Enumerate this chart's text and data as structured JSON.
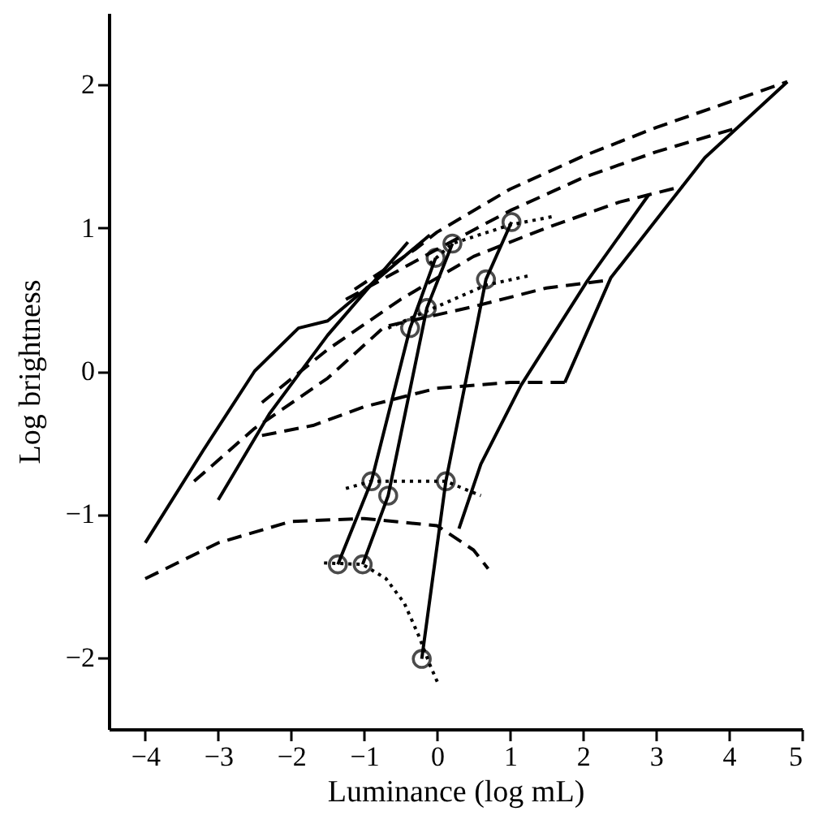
{
  "chart_data": {
    "type": "line",
    "xlabel": "Luminance (log mL)",
    "ylabel": "Log brightness",
    "xlim": [
      -4.5,
      5
    ],
    "ylim": [
      -2.5,
      2.5
    ],
    "xticks": [
      -4,
      -3,
      -2,
      -1,
      0,
      1,
      2,
      3,
      4,
      5
    ],
    "yticks": [
      -2,
      -1,
      0,
      1,
      2
    ],
    "grid": false,
    "legend": false,
    "series": [
      {
        "line_style": "solid",
        "color": "#000000",
        "x": [
          -4,
          -3.2,
          -2.5,
          -1.9,
          -1.5,
          -0.1
        ],
        "values": [
          -1.2,
          -0.55,
          0.0,
          0.3,
          0.35,
          0.95
        ]
      },
      {
        "line_style": "solid",
        "color": "#000000",
        "x": [
          -3,
          -2.3,
          -1.5,
          -0.4
        ],
        "values": [
          -0.9,
          -0.3,
          0.25,
          0.9
        ]
      },
      {
        "line_style": "solid",
        "color": "#000000",
        "x": [
          -1.36,
          -0.9,
          -0.37,
          -0.02
        ],
        "values": [
          -1.35,
          -0.77,
          0.3,
          0.79
        ]
      },
      {
        "line_style": "solid",
        "color": "#000000",
        "x": [
          -1.02,
          -0.67,
          -0.14,
          0.21
        ],
        "values": [
          -1.35,
          -0.87,
          0.44,
          0.89
        ]
      },
      {
        "line_style": "solid",
        "color": "#000000",
        "x": [
          -0.21,
          0.12,
          0.67,
          1.02
        ],
        "values": [
          -2.01,
          -0.77,
          0.64,
          1.04
        ]
      },
      {
        "line_style": "solid",
        "color": "#000000",
        "x": [
          0.3,
          0.6,
          1.15,
          2.06,
          2.9
        ],
        "values": [
          -1.1,
          -0.65,
          -0.1,
          0.63,
          1.23
        ]
      },
      {
        "line_style": "solid",
        "color": "#000000",
        "x": [
          1.75,
          2.38,
          3.67,
          4.8
        ],
        "values": [
          -0.08,
          0.65,
          1.49,
          2.02
        ]
      },
      {
        "line_style": "dashed",
        "color": "#000000",
        "x": [
          -1.13,
          -0.3,
          0,
          1,
          2,
          3,
          4.8
        ],
        "values": [
          0.57,
          0.85,
          0.97,
          1.27,
          1.5,
          1.7,
          2.02
        ]
      },
      {
        "line_style": "dashed",
        "color": "#000000",
        "x": [
          -1.25,
          0,
          1,
          2,
          3,
          4.13
        ],
        "values": [
          0.5,
          0.85,
          1.12,
          1.35,
          1.53,
          1.7
        ]
      },
      {
        "line_style": "dashed",
        "color": "#000000",
        "x": [
          -2.4,
          -1.5,
          -0.5,
          0.5,
          1.5,
          2.5,
          3.37
        ],
        "values": [
          -0.22,
          0.15,
          0.5,
          0.8,
          1.0,
          1.18,
          1.29
        ]
      },
      {
        "line_style": "dashed",
        "color": "#000000",
        "x": [
          -3.33,
          -2.5,
          -1.5,
          -0.72,
          0.5,
          1.5,
          2.29
        ],
        "values": [
          -0.77,
          -0.4,
          -0.05,
          0.31,
          0.45,
          0.58,
          0.63
        ]
      },
      {
        "line_style": "dashed",
        "color": "#000000",
        "x": [
          -2.4,
          -1.7,
          -1,
          0,
          1,
          1.75
        ],
        "values": [
          -0.45,
          -0.38,
          -0.25,
          -0.12,
          -0.08,
          -0.08
        ]
      },
      {
        "line_style": "dashed",
        "color": "#000000",
        "x": [
          -4,
          -3,
          -2,
          -1,
          0,
          0.5,
          0.7
        ],
        "values": [
          -1.45,
          -1.2,
          -1.05,
          -1.03,
          -1.08,
          -1.25,
          -1.38
        ]
      },
      {
        "line_style": "dotted",
        "color": "#000000",
        "x": [
          -0.1,
          0.21,
          1.0,
          1.6
        ],
        "values": [
          0.75,
          0.89,
          1.02,
          1.08
        ]
      },
      {
        "line_style": "dotted",
        "color": "#000000",
        "x": [
          -0.67,
          0.67,
          1.3
        ],
        "values": [
          0.3,
          0.6,
          0.67
        ]
      },
      {
        "line_style": "dotted",
        "color": "#000000",
        "x": [
          -1.25,
          -0.9,
          0.12,
          0.6
        ],
        "values": [
          -0.82,
          -0.77,
          -0.77,
          -0.87
        ]
      },
      {
        "line_style": "dotted",
        "color": "#000000",
        "x": [
          -1.55,
          -1.02,
          -0.7,
          -0.45,
          -0.25,
          -0.1,
          0.02
        ],
        "values": [
          -1.34,
          -1.35,
          -1.45,
          -1.62,
          -1.85,
          -2.05,
          -2.19
        ]
      },
      {
        "type": "scatter",
        "marker": "circle",
        "color": "#000000",
        "x": [
          -1.36,
          -0.9,
          -0.37,
          -0.02,
          -1.02,
          -0.67,
          -0.14,
          0.21,
          -0.21,
          0.12,
          0.67,
          1.02
        ],
        "values": [
          -1.35,
          -0.77,
          0.3,
          0.79,
          -1.35,
          -0.87,
          0.44,
          0.89,
          -2.01,
          -0.77,
          0.64,
          1.04
        ]
      }
    ]
  }
}
